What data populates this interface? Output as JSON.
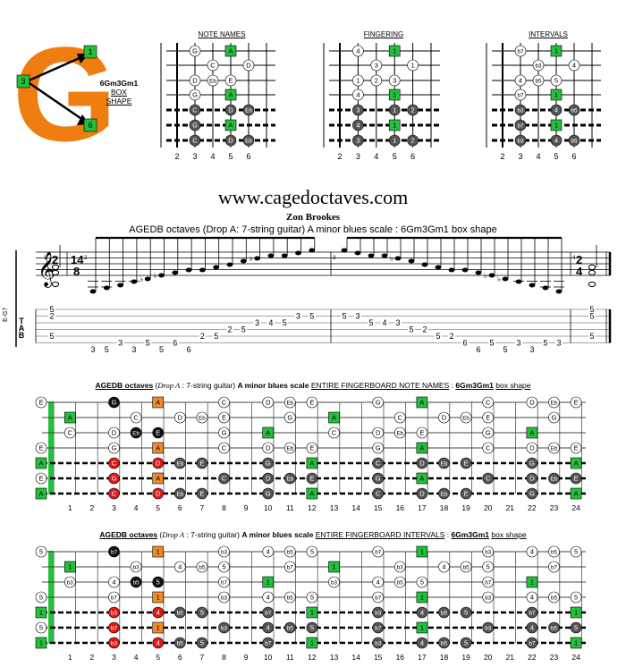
{
  "logo": {
    "letter": "G",
    "markers": [
      "1",
      "3",
      "6"
    ]
  },
  "box_label": {
    "name": "6Gm3Gm1",
    "line2": "BOX",
    "line3": "SHAPE"
  },
  "diagram_titles": [
    "NOTE NAMES",
    "FINGERING",
    "INTERVALS"
  ],
  "small_fret_numbers": [
    "2",
    "3",
    "4",
    "5",
    "6"
  ],
  "site": "www.cagedoctaves.com",
  "author": "Zon Brookes",
  "subtitle": "AGEDB octaves (Drop A: 7-string guitar) A minor blues scale : 6Gm3Gm1 box shape",
  "tuning_label": "E-G7",
  "staff_time_left": [
    "2",
    "4"
  ],
  "staff_time_mid": [
    "14",
    "8"
  ],
  "staff_time_right": [
    "2",
    "4"
  ],
  "tab_letters": [
    "T",
    "A",
    "B"
  ],
  "measure_numbers": [
    "1",
    "2",
    "3",
    "4"
  ],
  "tab_first_chord": [
    "5",
    "2",
    "",
    "",
    "5"
  ],
  "tab_numbers": [
    {
      "s": 6,
      "v": "3"
    },
    {
      "s": 6,
      "v": "5"
    },
    {
      "s": 5,
      "v": "3"
    },
    {
      "s": 6,
      "v": "3"
    },
    {
      "s": 5,
      "v": "5"
    },
    {
      "s": 6,
      "v": "5"
    },
    {
      "s": 5,
      "v": "6"
    },
    {
      "s": 6,
      "v": "6"
    },
    {
      "s": 4,
      "v": "2"
    },
    {
      "s": 4,
      "v": "5"
    },
    {
      "s": 3,
      "v": "2"
    },
    {
      "s": 3,
      "v": "5"
    },
    {
      "s": 2,
      "v": "3"
    },
    {
      "s": 2,
      "v": "4"
    },
    {
      "s": 2,
      "v": "5"
    },
    {
      "s": 1,
      "v": "3"
    },
    {
      "s": 1,
      "v": "5"
    },
    {
      "s": 1,
      "v": "5"
    },
    {
      "s": 1,
      "v": "3"
    },
    {
      "s": 2,
      "v": "5"
    },
    {
      "s": 2,
      "v": "4"
    },
    {
      "s": 2,
      "v": "3"
    },
    {
      "s": 3,
      "v": "5"
    },
    {
      "s": 3,
      "v": "2"
    },
    {
      "s": 4,
      "v": "5"
    },
    {
      "s": 4,
      "v": "2"
    },
    {
      "s": 5,
      "v": "6"
    },
    {
      "s": 6,
      "v": "6"
    },
    {
      "s": 5,
      "v": "5"
    },
    {
      "s": 6,
      "v": "5"
    },
    {
      "s": 5,
      "v": "3"
    },
    {
      "s": 6,
      "v": "3"
    },
    {
      "s": 5,
      "v": "5"
    },
    {
      "s": 5,
      "v": "3"
    }
  ],
  "tab_last_chord": [
    "5",
    "5",
    "",
    "",
    "5"
  ],
  "fb1": {
    "title_bold": "AGEDB octaves",
    "title_drop": "Drop A",
    "title_paren_rest": ": 7-string guitar)",
    "title_scale": "A minor blues scale",
    "title_mid": "ENTIRE FINGERBOARD NOTE NAMES",
    "title_shape": "6Gm3Gm1",
    "title_tail": "box shape"
  },
  "fb2": {
    "title_bold": "AGEDB octaves",
    "title_drop": "Drop A",
    "title_paren_rest": ": 7-string guitar)",
    "title_scale": "A minor blues scale",
    "title_mid": "ENTIRE FINGERBOARD INTERVALS",
    "title_shape": "6Gm3Gm1",
    "title_tail": "box shape"
  },
  "fret_numbers": [
    "1",
    "2",
    "3",
    "4",
    "5",
    "6",
    "7",
    "8",
    "9",
    "10",
    "11",
    "12",
    "13",
    "14",
    "15",
    "16",
    "17",
    "18",
    "19",
    "20",
    "21",
    "22",
    "23",
    "24"
  ],
  "scale_note_names": {
    "0": "A",
    "3": "C",
    "5": "D",
    "6": "Eb",
    "7": "E",
    "10": "G"
  },
  "scale_intervals": {
    "0": "1",
    "3": "b3",
    "5": "4",
    "6": "b5",
    "7": "5",
    "10": "b7"
  },
  "fingering_labels": {
    "0": "1",
    "3": "3",
    "5": "1",
    "6": "2",
    "7": "3",
    "10": "4"
  },
  "colors": {
    "root": "#22c03c",
    "orange": "#f08c28",
    "red": "#e01818",
    "dark": "#555555",
    "black": "#111111",
    "logo": "#f07d10"
  }
}
